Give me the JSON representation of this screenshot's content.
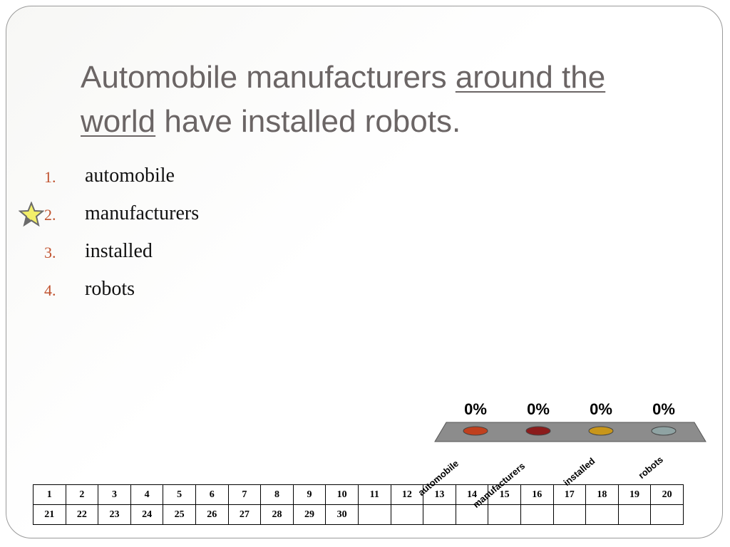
{
  "slide": {
    "title_part1": "Automobile manufacturers ",
    "title_underlined": "around the world",
    "title_part2": " have installed robots."
  },
  "options": [
    {
      "number": "1.",
      "label": "automobile"
    },
    {
      "number": "2.",
      "label": "manufacturers",
      "starred": true
    },
    {
      "number": "3.",
      "label": "installed"
    },
    {
      "number": "4.",
      "label": "robots"
    }
  ],
  "chart_data": {
    "type": "bar",
    "categories": [
      "automobile",
      "manufacturers",
      "installed",
      "robots"
    ],
    "values": [
      0,
      0,
      0,
      0
    ],
    "value_labels": [
      "0%",
      "0%",
      "0%",
      "0%"
    ],
    "colors": [
      "#c0401e",
      "#8b1c1c",
      "#c8961a",
      "#8fa3a3"
    ],
    "platform_color": "#8c8c8c"
  },
  "response_grid": {
    "row1": [
      "1",
      "2",
      "3",
      "4",
      "5",
      "6",
      "7",
      "8",
      "9",
      "10",
      "11",
      "12",
      "13",
      "14",
      "15",
      "16",
      "17",
      "18",
      "19",
      "20"
    ],
    "row2": [
      "21",
      "22",
      "23",
      "24",
      "25",
      "26",
      "27",
      "28",
      "29",
      "30",
      "",
      "",
      "",
      "",
      "",
      "",
      "",
      "",
      "",
      ""
    ]
  }
}
